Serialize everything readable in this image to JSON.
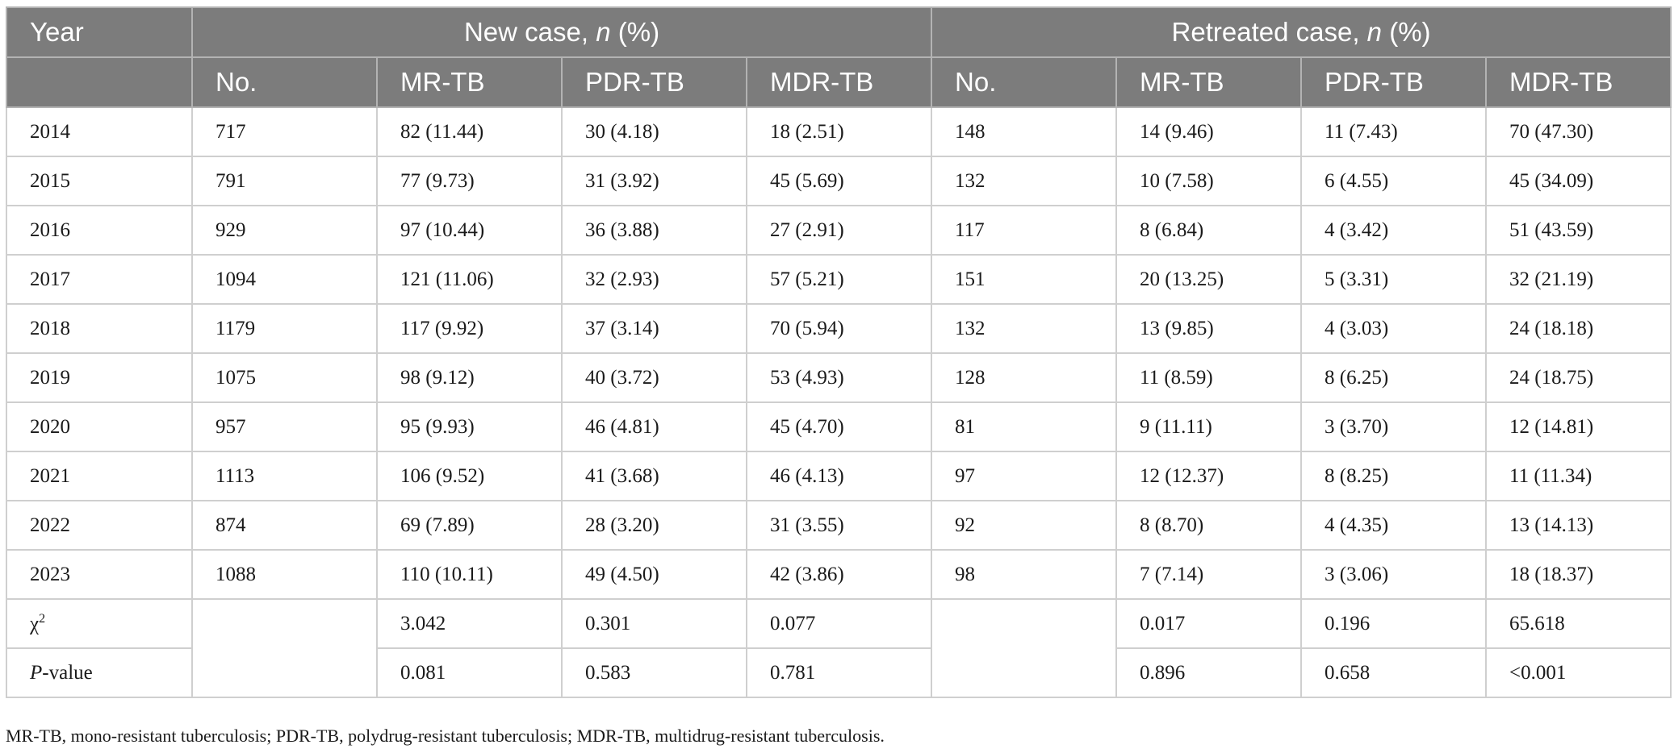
{
  "header": {
    "year": "Year",
    "new_case": "New case,",
    "retreated_case": "Retreated case,",
    "n_symbol": "n",
    "pct": "(%)",
    "sub": [
      "No.",
      "MR-TB",
      "PDR-TB",
      "MDR-TB",
      "No.",
      "MR-TB",
      "PDR-TB",
      "MDR-TB"
    ]
  },
  "rows": [
    [
      "2014",
      "717",
      "82 (11.44)",
      "30 (4.18)",
      "18 (2.51)",
      "148",
      "14 (9.46)",
      "11 (7.43)",
      "70 (47.30)"
    ],
    [
      "2015",
      "791",
      "77 (9.73)",
      "31 (3.92)",
      "45 (5.69)",
      "132",
      "10 (7.58)",
      "6 (4.55)",
      "45 (34.09)"
    ],
    [
      "2016",
      "929",
      "97 (10.44)",
      "36 (3.88)",
      "27 (2.91)",
      "117",
      "8 (6.84)",
      "4 (3.42)",
      "51 (43.59)"
    ],
    [
      "2017",
      "1094",
      "121 (11.06)",
      "32 (2.93)",
      "57 (5.21)",
      "151",
      "20 (13.25)",
      "5 (3.31)",
      "32 (21.19)"
    ],
    [
      "2018",
      "1179",
      "117 (9.92)",
      "37 (3.14)",
      "70 (5.94)",
      "132",
      "13 (9.85)",
      "4 (3.03)",
      "24 (18.18)"
    ],
    [
      "2019",
      "1075",
      "98 (9.12)",
      "40 (3.72)",
      "53 (4.93)",
      "128",
      "11 (8.59)",
      "8 (6.25)",
      "24 (18.75)"
    ],
    [
      "2020",
      "957",
      "95 (9.93)",
      "46 (4.81)",
      "45 (4.70)",
      "81",
      "9 (11.11)",
      "3 (3.70)",
      "12 (14.81)"
    ],
    [
      "2021",
      "1113",
      "106 (9.52)",
      "41 (3.68)",
      "46 (4.13)",
      "97",
      "12 (12.37)",
      "8 (8.25)",
      "11 (11.34)"
    ],
    [
      "2022",
      "874",
      "69 (7.89)",
      "28 (3.20)",
      "31 (3.55)",
      "92",
      "8 (8.70)",
      "4 (4.35)",
      "13 (14.13)"
    ],
    [
      "2023",
      "1088",
      "110 (10.11)",
      "49 (4.50)",
      "42 (3.86)",
      "98",
      "7 (7.14)",
      "3 (3.06)",
      "18 (18.37)"
    ]
  ],
  "stats": {
    "chi_label": "χ",
    "chi_sup": "2",
    "chi_values": [
      "3.042",
      "0.301",
      "0.077",
      "0.017",
      "0.196",
      "65.618"
    ],
    "p_label_italic": "P",
    "p_label_rest": "-value",
    "p_values": [
      "0.081",
      "0.583",
      "0.781",
      "0.896",
      "0.658",
      "<0.001"
    ]
  },
  "footnote": "MR-TB, mono-resistant tuberculosis; PDR-TB, polydrug-resistant tuberculosis; MDR-TB, multidrug-resistant tuberculosis."
}
